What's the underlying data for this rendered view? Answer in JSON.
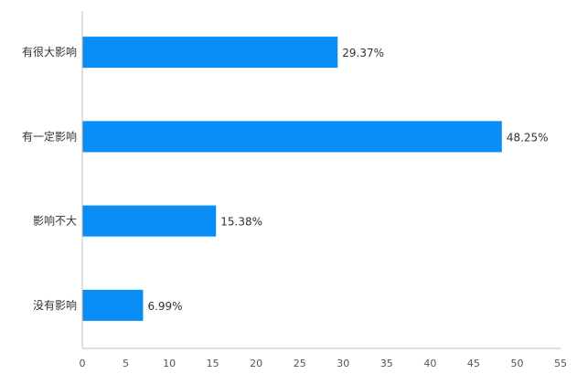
{
  "chart_data": {
    "type": "bar",
    "orientation": "horizontal",
    "categories": [
      "有很大影响",
      "有一定影响",
      "影响不大",
      "没有影响"
    ],
    "values": [
      29.37,
      48.25,
      15.38,
      6.99
    ],
    "value_labels": [
      "29.37%",
      "48.25%",
      "15.38%",
      "6.99%"
    ],
    "title": "",
    "xlabel": "",
    "ylabel": "",
    "xlim": [
      0,
      55
    ],
    "xticks": [
      0,
      5,
      10,
      15,
      20,
      25,
      30,
      35,
      40,
      45,
      50,
      55
    ],
    "grid": false,
    "legend": "none",
    "bar_color": "#0a8ef5"
  }
}
